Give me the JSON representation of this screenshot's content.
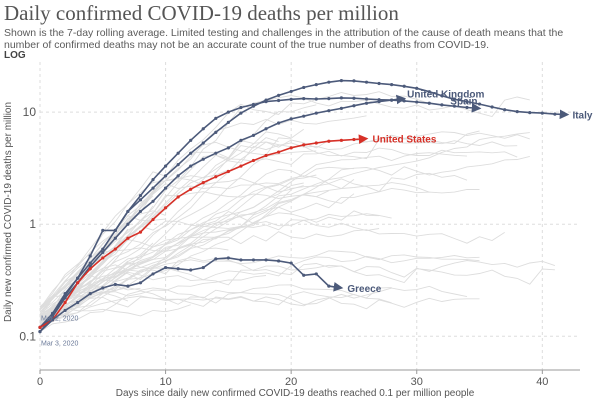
{
  "chart_data": {
    "type": "line",
    "title": "Daily confirmed COVID-19 deaths per million",
    "subtitle": "Shown is the 7-day rolling average. Limited testing and challenges in the attribution of the cause of death means that the number of confirmed deaths may not be an accurate count of the true number of deaths from COVID-19.",
    "scale_label": "LOG",
    "xlabel": "Days since daily new confirmed COVID-19 deaths reached 0.1 per million people",
    "ylabel": "Daily new confirmed COVID-19 deaths per million",
    "xlim": [
      0,
      43
    ],
    "ylim": [
      0.05,
      28
    ],
    "y_scale": "log",
    "x_ticks": [
      0,
      10,
      20,
      30,
      40
    ],
    "x_tick_labels": [
      "0",
      "10",
      "20",
      "30",
      "40"
    ],
    "y_ticks": [
      0.1,
      1,
      10
    ],
    "y_tick_labels": [
      "0.1",
      "1",
      "10"
    ],
    "grid": true,
    "colors": {
      "highlight": "#d73027",
      "series": "#4c5a7a",
      "background_lines": "#dddddd",
      "grid": "#dddddd"
    },
    "annotations": [
      {
        "text": "Mar 2, 2020",
        "x": 0,
        "y": 0.15
      },
      {
        "text": "Mar 3, 2020",
        "x": 0,
        "y": 0.11
      }
    ],
    "series": [
      {
        "name": "Italy",
        "highlight": false,
        "x": [
          0,
          1,
          2,
          3,
          4,
          5,
          6,
          7,
          8,
          9,
          10,
          11,
          12,
          13,
          14,
          15,
          16,
          17,
          18,
          19,
          20,
          21,
          22,
          23,
          24,
          25,
          26,
          27,
          28,
          29,
          30,
          31,
          32,
          33,
          34,
          35,
          36,
          37,
          38,
          39,
          40,
          41,
          42
        ],
        "y": [
          0.12,
          0.16,
          0.24,
          0.33,
          0.45,
          0.6,
          0.88,
          1.3,
          1.65,
          2.1,
          2.7,
          3.4,
          4.3,
          5.3,
          6.6,
          8.1,
          9.8,
          11.3,
          12.8,
          14.1,
          15.3,
          16.6,
          17.6,
          18.5,
          19.1,
          19.0,
          18.5,
          18.0,
          17.6,
          17.0,
          16.3,
          15.2,
          14.0,
          13.0,
          12.4,
          11.8,
          11.1,
          10.5,
          10.1,
          9.9,
          9.8,
          9.6,
          9.5
        ]
      },
      {
        "name": "Spain",
        "highlight": false,
        "x": [
          0,
          1,
          2,
          3,
          4,
          5,
          6,
          7,
          8,
          9,
          10,
          11,
          12,
          13,
          14,
          15,
          16,
          17,
          18,
          19,
          20,
          21,
          22,
          23,
          24,
          25,
          26,
          27,
          28,
          29,
          30,
          31,
          32,
          33,
          34,
          35
        ],
        "y": [
          0.11,
          0.15,
          0.23,
          0.33,
          0.52,
          0.88,
          0.88,
          1.3,
          1.8,
          2.5,
          3.3,
          4.3,
          5.6,
          7.1,
          8.8,
          10.0,
          11.0,
          11.7,
          12.4,
          12.7,
          13.0,
          13.2,
          13.1,
          13.2,
          13.4,
          13.3,
          13.1,
          12.9,
          12.8,
          12.6,
          12.3,
          12.0,
          11.6,
          11.3,
          11.0,
          10.8
        ]
      },
      {
        "name": "United Kingdom",
        "highlight": false,
        "x": [
          0,
          1,
          2,
          3,
          4,
          5,
          6,
          7,
          8,
          9,
          10,
          11,
          12,
          13,
          14,
          15,
          16,
          17,
          18,
          19,
          20,
          21,
          22,
          23,
          24,
          25,
          26,
          27,
          28,
          29
        ],
        "y": [
          0.12,
          0.15,
          0.22,
          0.3,
          0.42,
          0.56,
          0.75,
          1.0,
          1.3,
          1.6,
          2.1,
          2.7,
          3.3,
          3.8,
          4.3,
          4.8,
          5.6,
          6.2,
          7.1,
          8.0,
          8.7,
          9.2,
          9.8,
          10.3,
          10.8,
          11.4,
          12.0,
          12.4,
          12.8,
          13.2
        ]
      },
      {
        "name": "United States",
        "highlight": true,
        "x": [
          0,
          1,
          2,
          3,
          4,
          5,
          6,
          7,
          8,
          9,
          10,
          11,
          12,
          13,
          14,
          15,
          16,
          17,
          18,
          19,
          20,
          21,
          22,
          23,
          24,
          25,
          26
        ],
        "y": [
          0.12,
          0.14,
          0.2,
          0.3,
          0.4,
          0.5,
          0.6,
          0.75,
          0.85,
          1.1,
          1.4,
          1.75,
          2.05,
          2.35,
          2.65,
          2.95,
          3.3,
          3.7,
          4.1,
          4.4,
          4.8,
          5.1,
          5.3,
          5.5,
          5.6,
          5.7,
          5.8
        ]
      },
      {
        "name": "Greece",
        "highlight": false,
        "x": [
          0,
          1,
          2,
          3,
          4,
          5,
          6,
          7,
          8,
          9,
          10,
          11,
          12,
          13,
          14,
          15,
          16,
          17,
          18,
          19,
          20,
          21,
          22,
          23,
          24
        ],
        "y": [
          0.11,
          0.14,
          0.17,
          0.2,
          0.24,
          0.27,
          0.29,
          0.28,
          0.3,
          0.36,
          0.41,
          0.4,
          0.39,
          0.41,
          0.49,
          0.5,
          0.48,
          0.48,
          0.48,
          0.47,
          0.45,
          0.35,
          0.36,
          0.28,
          0.27
        ]
      }
    ]
  }
}
